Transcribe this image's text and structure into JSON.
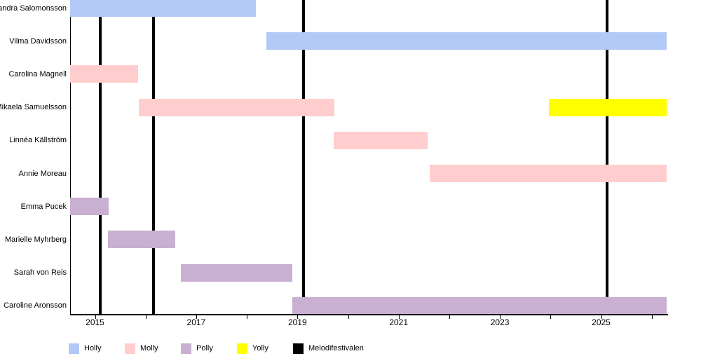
{
  "chart_data": {
    "type": "timeline",
    "title": "",
    "x_axis": {
      "range_years": [
        2014.51,
        2026.32
      ],
      "tick_labels": [
        "2015",
        "2017",
        "2019",
        "2021",
        "2023",
        "2025"
      ],
      "labeled_years": [
        2015,
        2017,
        2019,
        2021,
        2023,
        2025
      ],
      "minor_tick_years": [
        2015,
        2016,
        2017,
        2018,
        2019,
        2020,
        2021,
        2022,
        2023,
        2024,
        2025,
        2026
      ],
      "grid": false
    },
    "legend": [
      {
        "label": "Holly",
        "color": "#b2c8f7"
      },
      {
        "label": "Molly",
        "color": "#ffcdcd"
      },
      {
        "label": "Polly",
        "color": "#c9b0d2"
      },
      {
        "label": "Yolly",
        "color": "#ffff00"
      },
      {
        "label": "Melodifestivalen",
        "color": "#000000"
      }
    ],
    "legend_position": "bottom",
    "rows": [
      {
        "name": "Sandra Salomonsson",
        "bars": [
          {
            "role": "Holly",
            "start": 2014.51,
            "end": 2018.18,
            "start_clipped": true
          }
        ]
      },
      {
        "name": "Vilma Davidsson",
        "bars": [
          {
            "role": "Holly",
            "start": 2018.39,
            "end": 2026.3
          }
        ]
      },
      {
        "name": "Carolina Magnell",
        "bars": [
          {
            "role": "Molly",
            "start": 2014.51,
            "end": 2015.85,
            "start_clipped": true
          }
        ]
      },
      {
        "name": "Mikaela Samuelsson",
        "bars": [
          {
            "role": "Molly",
            "start": 2015.87,
            "end": 2019.73
          },
          {
            "role": "Yolly",
            "start": 2023.97,
            "end": 2026.3
          }
        ]
      },
      {
        "name": "Linnéa Källström",
        "bars": [
          {
            "role": "Molly",
            "start": 2019.72,
            "end": 2021.57
          }
        ]
      },
      {
        "name": "Annie Moreau",
        "bars": [
          {
            "role": "Molly",
            "start": 2021.61,
            "end": 2026.3
          }
        ]
      },
      {
        "name": "Emma Pucek",
        "bars": [
          {
            "role": "Polly",
            "start": 2014.51,
            "end": 2015.27,
            "start_clipped": true
          }
        ]
      },
      {
        "name": "Marielle Myhrberg",
        "bars": [
          {
            "role": "Polly",
            "start": 2015.26,
            "end": 2016.59
          }
        ]
      },
      {
        "name": "Sarah von Reis",
        "bars": [
          {
            "role": "Polly",
            "start": 2016.7,
            "end": 2018.9
          }
        ]
      },
      {
        "name": "Caroline Aronsson",
        "bars": [
          {
            "role": "Polly",
            "start": 2018.9,
            "end": 2026.3
          }
        ]
      }
    ],
    "events": [
      {
        "label": "Melodifestivalen",
        "year": 2015.1
      },
      {
        "label": "Melodifestivalen",
        "year": 2016.16
      },
      {
        "label": "Melodifestivalen",
        "year": 2019.12
      },
      {
        "label": "Melodifestivalen",
        "year": 2025.12
      }
    ]
  }
}
